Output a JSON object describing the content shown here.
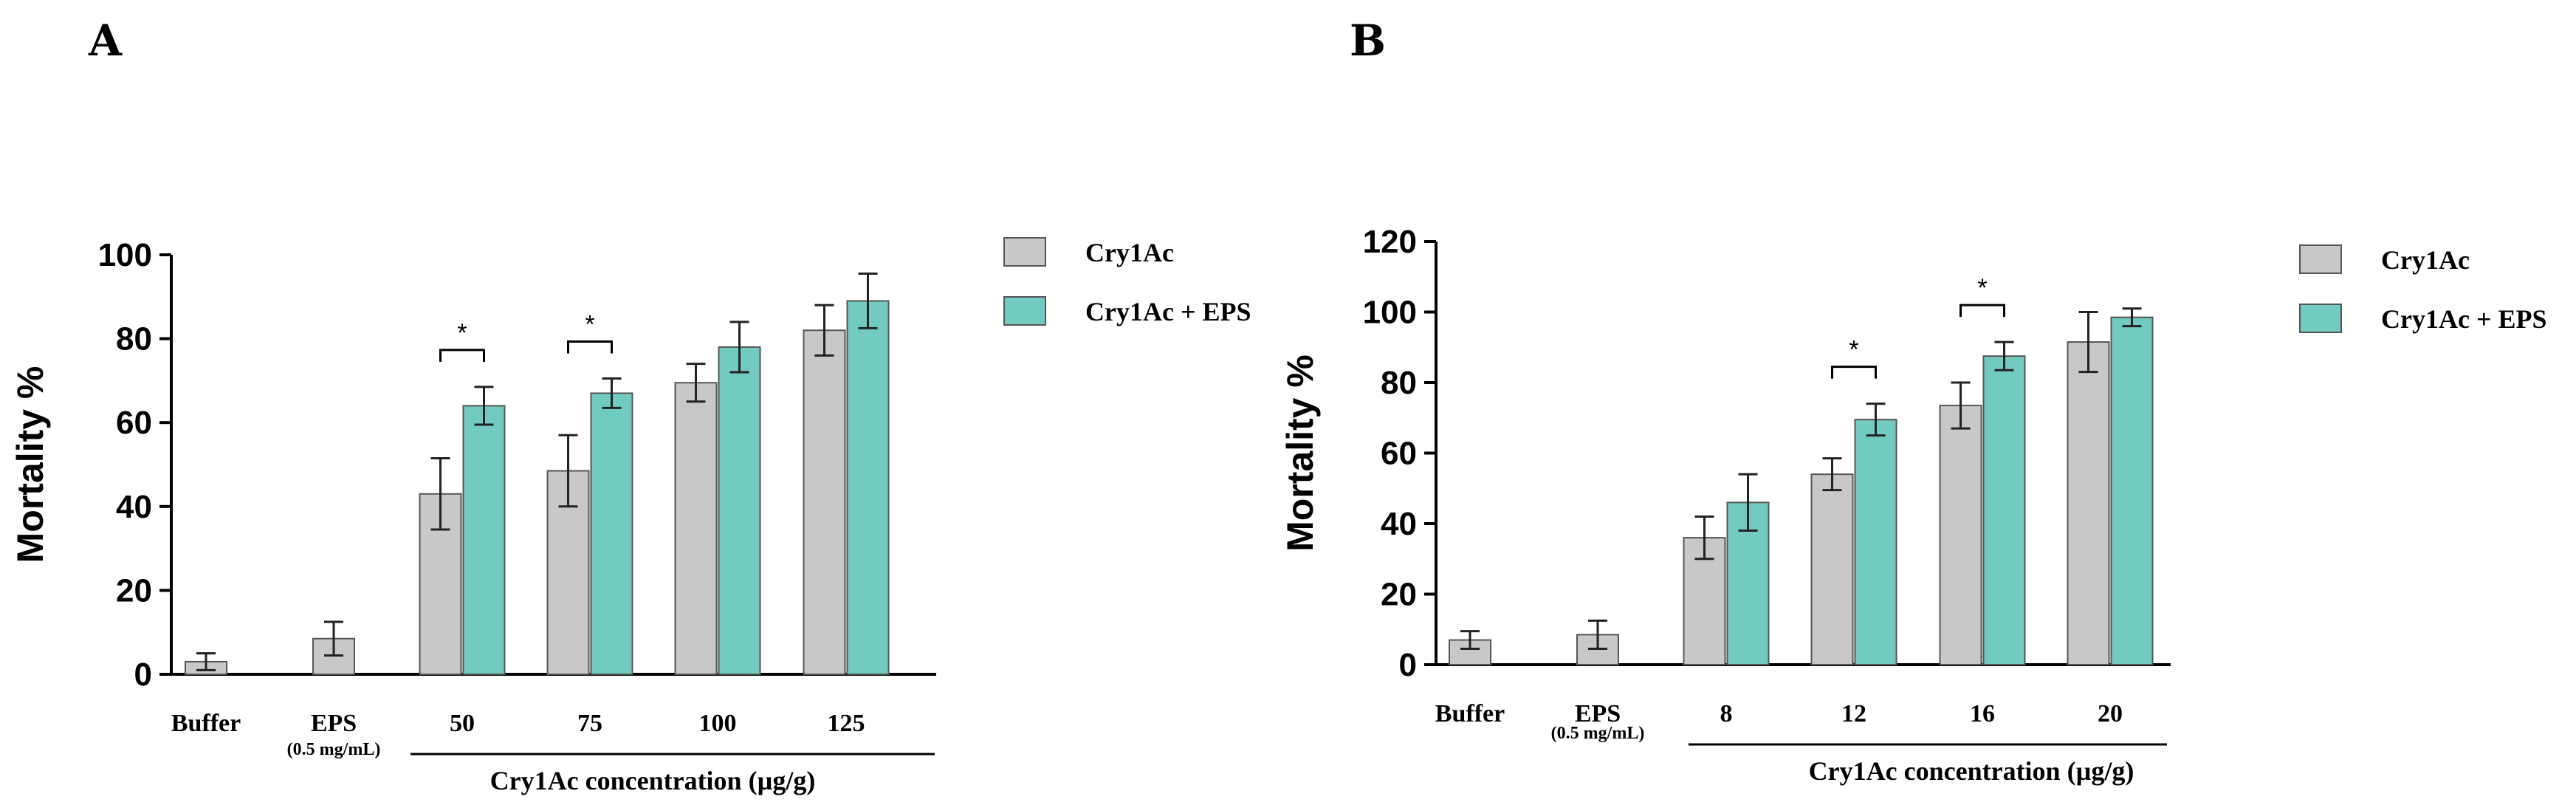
{
  "chart_data": [
    {
      "panel": "A",
      "type": "bar",
      "ylabel": "Mortality %",
      "xlabel": "Cry1Ac concentration (µg/g)",
      "ylim": [
        0,
        100
      ],
      "yticks": [
        "0",
        "20",
        "40",
        "60",
        "80",
        "100"
      ],
      "categories": [
        {
          "label": "Buffer",
          "sublabel": ""
        },
        {
          "label": "EPS",
          "sublabel": "(0.5 mg/mL)"
        },
        {
          "label": "50",
          "sublabel": ""
        },
        {
          "label": "75",
          "sublabel": ""
        },
        {
          "label": "100",
          "sublabel": ""
        },
        {
          "label": "125",
          "sublabel": ""
        }
      ],
      "series": [
        {
          "name": "Cry1Ac",
          "color": "#c8c8c8",
          "values": [
            null,
            null,
            43,
            48.5,
            69.5,
            82
          ],
          "errors": [
            null,
            null,
            8.5,
            8.5,
            4.5,
            6
          ]
        },
        {
          "name": "Cry1Ac + EPS",
          "color": "#72cbc0",
          "values": [
            null,
            null,
            64,
            67,
            78,
            89
          ],
          "errors": [
            null,
            null,
            4.5,
            3.5,
            6,
            6.5
          ]
        }
      ],
      "controls": [
        {
          "category": 0,
          "value": 3,
          "error": 2
        },
        {
          "category": 1,
          "value": 8.5,
          "error": 4
        }
      ],
      "significance": [
        {
          "category": 2,
          "label": "*"
        },
        {
          "category": 3,
          "label": "*"
        }
      ]
    },
    {
      "panel": "B",
      "type": "bar",
      "ylabel": "Mortality %",
      "xlabel": "Cry1Ac concentration (µg/g)",
      "ylim": [
        0,
        120
      ],
      "yticks": [
        "0",
        "20",
        "40",
        "60",
        "80",
        "100",
        "120"
      ],
      "categories": [
        {
          "label": "Buffer",
          "sublabel": ""
        },
        {
          "label": "EPS",
          "sublabel": "(0.5 mg/mL)"
        },
        {
          "label": "8",
          "sublabel": ""
        },
        {
          "label": "12",
          "sublabel": ""
        },
        {
          "label": "16",
          "sublabel": ""
        },
        {
          "label": "20",
          "sublabel": ""
        }
      ],
      "series": [
        {
          "name": "Cry1Ac",
          "color": "#c8c8c8",
          "values": [
            null,
            null,
            36,
            54,
            73.5,
            91.5
          ],
          "errors": [
            null,
            null,
            6,
            4.5,
            6.5,
            8.5
          ]
        },
        {
          "name": "Cry1Ac + EPS",
          "color": "#72cbc0",
          "values": [
            null,
            null,
            46,
            69.5,
            87.5,
            98.5
          ],
          "errors": [
            null,
            null,
            8,
            4.5,
            4,
            2.5
          ]
        }
      ],
      "controls": [
        {
          "category": 0,
          "value": 7,
          "error": 2.5
        },
        {
          "category": 1,
          "value": 8.5,
          "error": 4
        }
      ],
      "significance": [
        {
          "category": 3,
          "label": "*"
        },
        {
          "category": 4,
          "label": "*"
        }
      ]
    }
  ]
}
